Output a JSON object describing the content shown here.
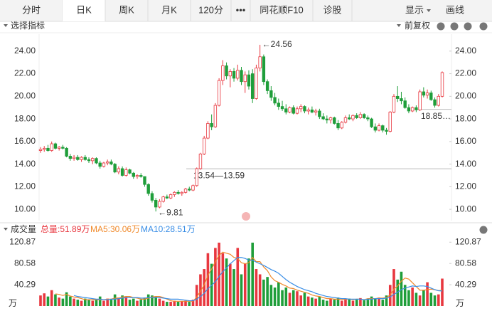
{
  "tabs": [
    "分时",
    "日K",
    "周K",
    "月K",
    "120分",
    "•••",
    "同花顺F10",
    "诊股"
  ],
  "selected_tab": 1,
  "tab_right": [
    "显示",
    "画线"
  ],
  "toolbar": {
    "left": "选择指标",
    "right": "前复权"
  },
  "volume_panel": {
    "title": "成交量",
    "total": "总量:51.89万",
    "ma5": "MA5:30.06万",
    "ma10": "MA10:28.51万",
    "unit": "万"
  },
  "chart_data": {
    "type": "candlestick",
    "up_color": "#e8373f",
    "down_color": "#1f9e3a",
    "ma5_color": "#f0892a",
    "ma10_color": "#3a8ee6",
    "ylim": [
      9.0,
      25.5
    ],
    "yticks": [
      {
        "value": 10,
        "label": "10.00"
      },
      {
        "value": 12,
        "label": "12.00"
      },
      {
        "value": 14,
        "label": "14.00"
      },
      {
        "value": 16,
        "label": "16.00"
      },
      {
        "value": 18,
        "label": "18.00"
      },
      {
        "value": 20,
        "label": "20.00"
      },
      {
        "value": 22,
        "label": "22.00"
      },
      {
        "value": 24,
        "label": "24.00"
      }
    ],
    "max_label": {
      "value": 24.56,
      "label": "←24.56"
    },
    "min_label": {
      "value": 9.81,
      "label": "←9.81"
    },
    "ref_lines": [
      {
        "value": 13.59,
        "label": "13.54—13.59"
      },
      {
        "value": 18.85,
        "label": "18.85…"
      }
    ],
    "ohlc": [
      [
        15.2,
        15.5,
        15.0,
        15.3
      ],
      [
        15.3,
        15.6,
        15.1,
        15.4
      ],
      [
        15.4,
        15.7,
        15.1,
        15.2
      ],
      [
        15.2,
        16.0,
        15.1,
        15.8
      ],
      [
        15.8,
        15.9,
        15.3,
        15.4
      ],
      [
        15.4,
        15.6,
        15.2,
        15.5
      ],
      [
        15.5,
        15.7,
        15.3,
        15.4
      ],
      [
        15.4,
        15.5,
        14.6,
        14.7
      ],
      [
        14.7,
        14.9,
        14.3,
        14.5
      ],
      [
        14.5,
        14.8,
        14.3,
        14.6
      ],
      [
        14.6,
        14.8,
        14.3,
        14.4
      ],
      [
        14.4,
        14.7,
        14.2,
        14.6
      ],
      [
        14.6,
        14.8,
        14.3,
        14.4
      ],
      [
        14.4,
        14.6,
        14.1,
        14.3
      ],
      [
        14.3,
        14.6,
        14.0,
        14.5
      ],
      [
        14.5,
        14.6,
        14.0,
        14.1
      ],
      [
        14.1,
        14.3,
        13.6,
        13.8
      ],
      [
        13.8,
        14.2,
        13.7,
        14.1
      ],
      [
        14.1,
        14.4,
        13.9,
        14.2
      ],
      [
        14.2,
        14.4,
        13.9,
        14.0
      ],
      [
        14.0,
        14.1,
        13.2,
        13.3
      ],
      [
        13.3,
        13.8,
        13.1,
        13.6
      ],
      [
        13.6,
        13.8,
        12.9,
        13.0
      ],
      [
        13.0,
        13.7,
        12.9,
        13.5
      ],
      [
        13.5,
        13.6,
        13.1,
        13.2
      ],
      [
        13.2,
        13.3,
        12.7,
        12.9
      ],
      [
        12.9,
        13.1,
        12.7,
        13.0
      ],
      [
        13.0,
        13.2,
        12.8,
        12.9
      ],
      [
        12.9,
        12.9,
        12.0,
        12.2
      ],
      [
        12.2,
        12.3,
        11.2,
        11.4
      ],
      [
        11.4,
        11.6,
        10.6,
        10.8
      ],
      [
        10.8,
        11.0,
        9.81,
        10.2
      ],
      [
        10.2,
        10.9,
        10.1,
        10.7
      ],
      [
        10.7,
        11.2,
        10.6,
        11.1
      ],
      [
        11.1,
        11.3,
        10.9,
        11.0
      ],
      [
        11.0,
        11.4,
        10.9,
        11.3
      ],
      [
        11.3,
        11.6,
        11.1,
        11.5
      ],
      [
        11.5,
        11.7,
        11.3,
        11.4
      ],
      [
        11.4,
        11.6,
        11.2,
        11.5
      ],
      [
        11.5,
        11.9,
        11.4,
        11.8
      ],
      [
        11.8,
        12.0,
        11.6,
        11.7
      ],
      [
        11.7,
        12.2,
        11.6,
        12.1
      ],
      [
        12.1,
        13.7,
        12.0,
        13.6
      ],
      [
        13.6,
        15.0,
        13.5,
        14.9
      ],
      [
        14.9,
        16.5,
        14.8,
        16.3
      ],
      [
        16.3,
        17.8,
        16.2,
        17.6
      ],
      [
        17.6,
        18.4,
        17.0,
        17.3
      ],
      [
        17.3,
        19.4,
        17.2,
        19.2
      ],
      [
        19.2,
        21.6,
        19.1,
        21.4
      ],
      [
        21.4,
        23.2,
        21.0,
        22.7
      ],
      [
        22.7,
        23.0,
        21.5,
        21.8
      ],
      [
        21.8,
        22.4,
        20.8,
        22.2
      ],
      [
        22.2,
        22.5,
        21.3,
        21.6
      ],
      [
        21.6,
        22.8,
        21.4,
        22.3
      ],
      [
        22.3,
        22.6,
        21.0,
        21.3
      ],
      [
        21.3,
        22.2,
        20.3,
        21.9
      ],
      [
        21.9,
        22.3,
        20.6,
        20.9
      ],
      [
        22.0,
        22.4,
        19.4,
        19.8
      ],
      [
        19.8,
        22.8,
        19.7,
        22.5
      ],
      [
        22.5,
        24.56,
        22.2,
        23.5
      ],
      [
        23.5,
        23.7,
        21.0,
        21.3
      ],
      [
        21.3,
        21.5,
        20.2,
        20.5
      ],
      [
        20.5,
        20.9,
        19.6,
        19.9
      ],
      [
        19.9,
        20.3,
        19.2,
        19.4
      ],
      [
        19.4,
        19.8,
        18.8,
        19.1
      ],
      [
        19.1,
        19.6,
        18.7,
        18.9
      ],
      [
        18.9,
        19.3,
        18.4,
        18.6
      ],
      [
        18.6,
        19.1,
        18.5,
        19.0
      ],
      [
        19.0,
        19.2,
        18.4,
        18.5
      ],
      [
        18.5,
        19.1,
        18.4,
        18.9
      ],
      [
        18.9,
        19.3,
        18.6,
        19.1
      ],
      [
        19.1,
        19.2,
        18.5,
        18.7
      ],
      [
        18.7,
        19.0,
        18.4,
        18.8
      ],
      [
        18.8,
        19.1,
        18.5,
        18.6
      ],
      [
        18.6,
        18.9,
        18.3,
        18.7
      ],
      [
        18.7,
        18.9,
        18.0,
        18.2
      ],
      [
        18.2,
        18.5,
        17.9,
        18.0
      ],
      [
        18.0,
        18.3,
        17.6,
        17.9
      ],
      [
        17.9,
        18.2,
        17.6,
        18.1
      ],
      [
        18.1,
        18.2,
        17.5,
        17.6
      ],
      [
        17.6,
        17.9,
        17.0,
        17.2
      ],
      [
        17.2,
        17.8,
        17.1,
        17.7
      ],
      [
        17.7,
        18.3,
        17.6,
        18.1
      ],
      [
        18.1,
        18.4,
        17.9,
        18.0
      ],
      [
        18.0,
        18.4,
        17.8,
        18.3
      ],
      [
        18.3,
        18.5,
        18.0,
        18.1
      ],
      [
        18.1,
        18.6,
        18.0,
        18.4
      ],
      [
        18.4,
        18.5,
        18.0,
        18.1
      ],
      [
        18.1,
        18.3,
        17.8,
        18.0
      ],
      [
        18.0,
        18.1,
        17.2,
        17.3
      ],
      [
        17.3,
        17.6,
        16.8,
        17.0
      ],
      [
        17.0,
        17.6,
        16.9,
        17.4
      ],
      [
        17.4,
        17.5,
        16.8,
        17.0
      ],
      [
        17.0,
        17.2,
        16.6,
        16.9
      ],
      [
        16.9,
        18.7,
        16.8,
        18.6
      ],
      [
        18.6,
        20.2,
        18.5,
        20.0
      ],
      [
        20.0,
        20.9,
        19.5,
        19.8
      ],
      [
        19.8,
        20.4,
        19.3,
        19.6
      ],
      [
        19.6,
        19.9,
        18.9,
        19.0
      ],
      [
        19.0,
        19.3,
        18.5,
        18.7
      ],
      [
        18.7,
        19.1,
        18.6,
        19.0
      ],
      [
        19.0,
        19.2,
        18.6,
        18.8
      ],
      [
        18.8,
        20.6,
        18.7,
        20.4
      ],
      [
        20.4,
        20.8,
        19.9,
        20.1
      ],
      [
        20.1,
        20.6,
        19.8,
        20.3
      ],
      [
        20.3,
        20.5,
        19.6,
        19.7
      ],
      [
        19.7,
        19.9,
        19.0,
        19.2
      ],
      [
        19.2,
        20.2,
        19.1,
        20.0
      ],
      [
        20.0,
        22.2,
        19.9,
        22.1
      ]
    ],
    "vlim": [
      0,
      128
    ],
    "vticks": [
      40.29,
      80.58,
      120.87
    ],
    "volume": [
      20,
      24,
      18,
      30,
      22,
      16,
      14,
      26,
      18,
      14,
      12,
      10,
      14,
      12,
      10,
      12,
      18,
      10,
      14,
      12,
      22,
      16,
      20,
      18,
      12,
      14,
      10,
      12,
      16,
      22,
      20,
      18,
      14,
      10,
      8,
      8,
      10,
      8,
      9,
      10,
      8,
      12,
      40,
      60,
      70,
      100,
      80,
      110,
      120,
      100,
      90,
      80,
      70,
      110,
      60,
      80,
      90,
      120,
      70,
      60,
      50,
      55,
      40,
      35,
      45,
      30,
      35,
      25,
      30,
      28,
      20,
      25,
      18,
      16,
      14,
      18,
      12,
      10,
      14,
      12,
      16,
      10,
      12,
      14,
      10,
      12,
      15,
      11,
      12,
      18,
      14,
      16,
      12,
      20,
      40,
      70,
      50,
      65,
      40,
      30,
      35,
      25,
      20,
      30,
      45,
      25,
      20,
      22,
      51.89
    ],
    "ma5": [
      null,
      null,
      null,
      null,
      23,
      22,
      20,
      22,
      19,
      17,
      16,
      14,
      12,
      12,
      12,
      12,
      12,
      12,
      13,
      13,
      15,
      15,
      17,
      18,
      18,
      16,
      15,
      13,
      13,
      15,
      17,
      18,
      18,
      16,
      13,
      10,
      9,
      9,
      9,
      9,
      9,
      9,
      17,
      28,
      40,
      58,
      70,
      84,
      96,
      102,
      100,
      98,
      92,
      90,
      82,
      80,
      82,
      92,
      84,
      84,
      74,
      67,
      55,
      48,
      45,
      41,
      38,
      34,
      33,
      30,
      28,
      26,
      24,
      21,
      19,
      18,
      16,
      14,
      14,
      13,
      13,
      12,
      13,
      13,
      12,
      13,
      13,
      12,
      14,
      14,
      14,
      15,
      15,
      16,
      21,
      32,
      38,
      47,
      53,
      51,
      44,
      37,
      30,
      30,
      31,
      32,
      31,
      29,
      30.06
    ],
    "ma10": [
      null,
      null,
      null,
      null,
      null,
      null,
      null,
      null,
      null,
      20,
      18,
      17,
      16,
      15,
      14,
      13,
      13,
      12,
      12,
      13,
      13,
      14,
      15,
      16,
      16,
      16,
      16,
      15,
      15,
      16,
      16,
      16,
      16,
      15,
      14,
      13,
      13,
      13,
      12,
      11,
      10,
      10,
      13,
      18,
      24,
      33,
      39,
      46,
      56,
      65,
      72,
      80,
      86,
      92,
      92,
      90,
      87,
      87,
      83,
      80,
      77,
      73,
      69,
      66,
      62,
      56,
      50,
      45,
      41,
      37,
      34,
      31,
      29,
      27,
      24,
      22,
      20,
      18,
      17,
      16,
      15,
      14,
      14,
      13,
      13,
      13,
      13,
      12,
      13,
      13,
      14,
      14,
      14,
      15,
      17,
      22,
      26,
      31,
      34,
      36,
      38,
      37,
      38,
      38,
      37,
      34,
      31,
      29,
      28.51
    ]
  }
}
